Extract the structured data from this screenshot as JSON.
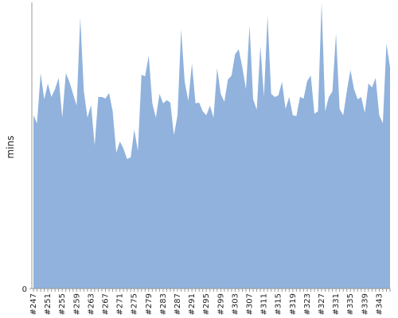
{
  "chart_data": {
    "type": "area",
    "y_label": "mins",
    "color": "#90b2dc",
    "categories": [
      "#247",
      null,
      null,
      null,
      "#251",
      null,
      null,
      null,
      "#255",
      null,
      null,
      null,
      "#259",
      null,
      null,
      null,
      "#263",
      null,
      null,
      null,
      "#267",
      null,
      null,
      null,
      "#271",
      null,
      null,
      null,
      "#275",
      null,
      null,
      null,
      "#279",
      null,
      null,
      null,
      "#283",
      null,
      null,
      null,
      "#287",
      null,
      null,
      null,
      "#291",
      null,
      null,
      null,
      "#295",
      null,
      null,
      null,
      "#299",
      null,
      null,
      null,
      "#303",
      null,
      null,
      null,
      "#307",
      null,
      null,
      null,
      "#311",
      null,
      null,
      null,
      "#315",
      null,
      null,
      null,
      "#319",
      null,
      null,
      null,
      "#323",
      null,
      null,
      null,
      "#327",
      null,
      null,
      null,
      "#331",
      null,
      null,
      null,
      "#335",
      null,
      null,
      null,
      "#339",
      null,
      null,
      null,
      "#343",
      null,
      null,
      null
    ],
    "values": [
      21.8,
      20.8,
      27.1,
      23.8,
      25.8,
      24.1,
      25.1,
      26.5,
      21.5,
      27.1,
      26.0,
      24.5,
      23.0,
      34.1,
      24.8,
      21.5,
      23.1,
      18.0,
      24.1,
      24.1,
      23.9,
      24.6,
      22.3,
      17.1,
      18.5,
      17.6,
      16.3,
      16.5,
      20.0,
      17.3,
      26.9,
      26.7,
      29.3,
      23.3,
      21.5,
      24.5,
      23.3,
      23.7,
      23.4,
      19.3,
      21.8,
      32.6,
      26.0,
      23.6,
      28.3,
      23.3,
      23.4,
      22.3,
      21.8,
      23.0,
      21.5,
      27.7,
      24.5,
      23.5,
      26.3,
      26.8,
      29.5,
      30.1,
      27.8,
      25.1,
      33.1,
      23.8,
      22.5,
      30.5,
      24.1,
      34.3,
      24.5,
      24.1,
      24.3,
      26.0,
      22.6,
      24.1,
      21.8,
      21.7,
      24.1,
      23.9,
      26.1,
      26.8,
      22.0,
      22.3,
      36.0,
      22.3,
      24.1,
      24.8,
      32.1,
      22.6,
      21.8,
      24.8,
      27.5,
      25.1,
      23.8,
      24.1,
      22.1,
      25.8,
      25.3,
      26.5,
      21.8,
      20.8,
      30.8,
      27.8
    ],
    "ylim": [
      0,
      36
    ],
    "yticks": [
      0
    ]
  }
}
